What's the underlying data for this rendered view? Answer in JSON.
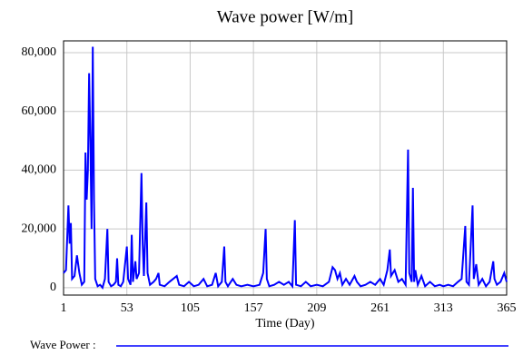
{
  "chart_data": {
    "type": "line",
    "title": "Wave power [W/m]",
    "x_label": "Time (Day)",
    "x": [
      1,
      3,
      5,
      6,
      7,
      8,
      10,
      12,
      14,
      16,
      18,
      19,
      20,
      21,
      22,
      23,
      24,
      25,
      26,
      27,
      29,
      31,
      33,
      35,
      37,
      38,
      40,
      42,
      44,
      45,
      46,
      48,
      50,
      53,
      54,
      56,
      57,
      58,
      60,
      61,
      63,
      65,
      66,
      67,
      69,
      70,
      72,
      75,
      77,
      79,
      80,
      84,
      88,
      91,
      94,
      96,
      100,
      104,
      108,
      112,
      116,
      119,
      123,
      126,
      128,
      131,
      133,
      134,
      136,
      140,
      143,
      147,
      152,
      157,
      162,
      165,
      167,
      168,
      170,
      174,
      178,
      182,
      186,
      189,
      191,
      192,
      196,
      200,
      204,
      209,
      214,
      219,
      222,
      224,
      226,
      228,
      230,
      233,
      236,
      240,
      242,
      245,
      249,
      253,
      257,
      261,
      264,
      267,
      269,
      270,
      273,
      276,
      279,
      282,
      284,
      285,
      287,
      288,
      289,
      290,
      292,
      295,
      298,
      302,
      306,
      310,
      313,
      317,
      321,
      325,
      328,
      331,
      332,
      334,
      337,
      338,
      340,
      342,
      345,
      348,
      351,
      354,
      355,
      357,
      360,
      363,
      365
    ],
    "series": [
      {
        "name": "Wave Power :",
        "color": "#0000ff",
        "values": [
          5000,
          6000,
          28000,
          15000,
          22000,
          3000,
          4000,
          11000,
          5000,
          1000,
          2000,
          46000,
          30000,
          40000,
          73000,
          50000,
          20000,
          82000,
          30000,
          3000,
          500,
          1000,
          0,
          3000,
          20000,
          2000,
          500,
          1000,
          2000,
          10000,
          1000,
          500,
          2000,
          14000,
          3000,
          1000,
          18000,
          2000,
          9000,
          3000,
          5000,
          39000,
          15000,
          4000,
          29000,
          5000,
          1000,
          2000,
          3000,
          5000,
          1000,
          500,
          2000,
          3000,
          4000,
          1000,
          500,
          2000,
          500,
          1000,
          3000,
          500,
          1000,
          5000,
          500,
          2000,
          14000,
          2000,
          500,
          3000,
          1000,
          500,
          1000,
          500,
          1000,
          5000,
          20000,
          3000,
          500,
          1000,
          2000,
          1000,
          2000,
          500,
          23000,
          1000,
          500,
          2000,
          500,
          1000,
          500,
          2000,
          7000,
          6000,
          3000,
          5000,
          1000,
          3000,
          1000,
          4000,
          2000,
          500,
          1000,
          2000,
          1000,
          3000,
          1000,
          6000,
          13000,
          4000,
          6000,
          2000,
          3000,
          1000,
          47000,
          5000,
          2000,
          34000,
          2000,
          6000,
          1000,
          4000,
          500,
          2000,
          500,
          1000,
          500,
          1000,
          500,
          2000,
          3000,
          21000,
          2000,
          1000,
          28000,
          3000,
          8000,
          1000,
          3000,
          500,
          2000,
          9000,
          3000,
          1000,
          2000,
          5000,
          2000
        ]
      }
    ],
    "xlim": [
      1,
      365
    ],
    "xticks": [
      1,
      53,
      105,
      157,
      209,
      261,
      313,
      365
    ],
    "ylim": [
      -2500,
      84000
    ],
    "yticks": [
      0,
      {
        "value": 20000,
        "label": "20,000"
      },
      {
        "value": 40000,
        "label": "40,000"
      },
      {
        "value": 60000,
        "label": "60,000"
      },
      {
        "value": 80000,
        "label": "80,000"
      }
    ],
    "grid": true
  }
}
